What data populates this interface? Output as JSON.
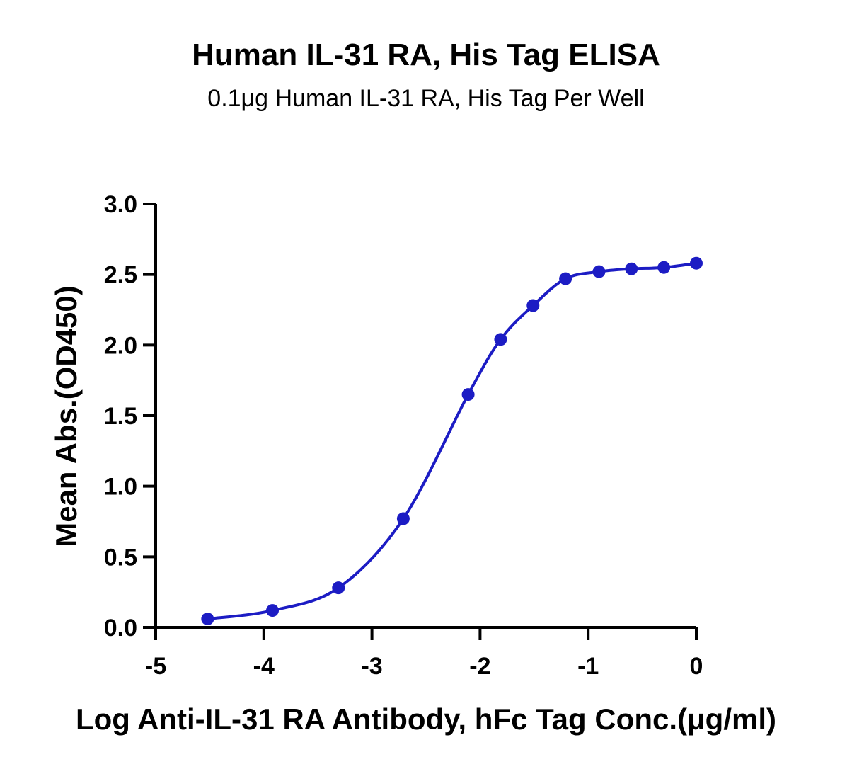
{
  "chart_data": {
    "type": "scatter",
    "title": "Human IL-31 RA, His Tag ELISA",
    "subtitle": "0.1μg Human IL-31 RA, His Tag Per Well",
    "xlabel": "Log Anti-IL-31 RA Antibody, hFc Tag Conc.(μg/ml)",
    "ylabel": "Mean Abs.(OD450)",
    "xlim": [
      -5,
      0
    ],
    "ylim": [
      0,
      3
    ],
    "xticks": [
      "-5",
      "-4",
      "-3",
      "-2",
      "-1",
      "0"
    ],
    "yticks": [
      "0.0",
      "0.5",
      "1.0",
      "1.5",
      "2.0",
      "2.5",
      "3.0"
    ],
    "grid": false,
    "color": "#1c1cc4",
    "series": [
      {
        "x": [
          -4.52,
          -3.92,
          -3.31,
          -2.71,
          -2.11,
          -1.81,
          -1.51,
          -1.21,
          -0.9,
          -0.6,
          -0.3,
          0.0
        ],
        "values": [
          0.06,
          0.12,
          0.28,
          0.77,
          1.65,
          2.04,
          2.28,
          2.47,
          2.52,
          2.54,
          2.55,
          2.58
        ],
        "fit": "4PL sigmoidal curve"
      }
    ]
  }
}
